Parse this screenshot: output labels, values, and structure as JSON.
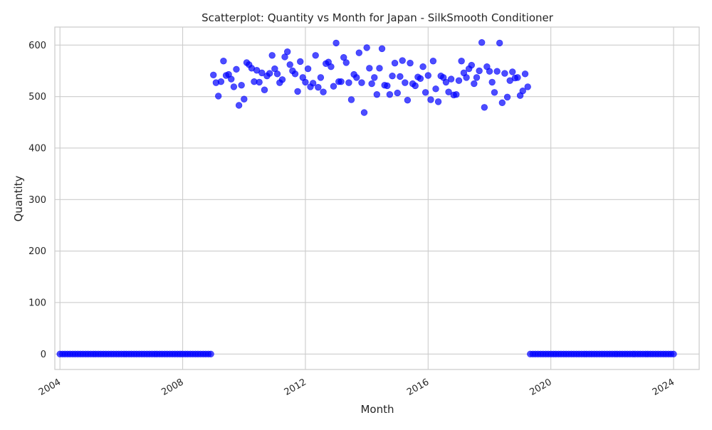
{
  "chart_data": {
    "type": "scatter",
    "title": "Scatterplot: Quantity vs Month for Japan - SilkSmooth Conditioner",
    "xlabel": "Month",
    "ylabel": "Quantity",
    "xlim": [
      "2003-11-01",
      "2024-11-01"
    ],
    "ylim": [
      -30,
      635
    ],
    "x_ticks": [
      {
        "value": "2004-01-01",
        "label": "2004"
      },
      {
        "value": "2008-01-01",
        "label": "2008"
      },
      {
        "value": "2012-01-01",
        "label": "2012"
      },
      {
        "value": "2016-01-01",
        "label": "2016"
      },
      {
        "value": "2020-01-01",
        "label": "2020"
      },
      {
        "value": "2024-01-01",
        "label": "2024"
      }
    ],
    "y_ticks": [
      0,
      100,
      200,
      300,
      400,
      500,
      600
    ],
    "grid": true,
    "marker_color": "#0000ff",
    "marker_opacity": 0.7,
    "background": "#ffffff",
    "grid_color": "#cccccc",
    "series": [
      {
        "start": "2004-01",
        "values": [
          0,
          0,
          0,
          0,
          0,
          0,
          0,
          0,
          0,
          0,
          0,
          0,
          0,
          0,
          0,
          0,
          0,
          0,
          0,
          0,
          0,
          0,
          0,
          0,
          0,
          0,
          0,
          0,
          0,
          0,
          0,
          0,
          0,
          0,
          0,
          0,
          0,
          0,
          0,
          0,
          0,
          0,
          0,
          0,
          0,
          0,
          0,
          0,
          0,
          0,
          0,
          0,
          0,
          0,
          0,
          0,
          0,
          0,
          0,
          0,
          542,
          527,
          501,
          529,
          569,
          541,
          543,
          534,
          519,
          553,
          483,
          522,
          495,
          566,
          562,
          555,
          529,
          551,
          528,
          546,
          513,
          540,
          545,
          580,
          554,
          544,
          527,
          533,
          577,
          587,
          562,
          550,
          544,
          510,
          568,
          537,
          528,
          554,
          519,
          526,
          580,
          518,
          537,
          509,
          564,
          567,
          558,
          520,
          604,
          529,
          529,
          576,
          566,
          527,
          494,
          543,
          537,
          585,
          527,
          469,
          595,
          555,
          525,
          537,
          504,
          555,
          593,
          522,
          521,
          504,
          540,
          565,
          507,
          539,
          570,
          527,
          493,
          565,
          525,
          521,
          538,
          535,
          558,
          508,
          541,
          494,
          569,
          515,
          490,
          540,
          537,
          528,
          509,
          534,
          503,
          504,
          531,
          569,
          546,
          537,
          554,
          561,
          525,
          537,
          550,
          605,
          479,
          558,
          549,
          528,
          508,
          549,
          604,
          488,
          545,
          499,
          531,
          548,
          536,
          537,
          502,
          511,
          544,
          519,
          0,
          0,
          0,
          0,
          0,
          0,
          0,
          0,
          0,
          0,
          0,
          0,
          0,
          0,
          0,
          0,
          0,
          0,
          0,
          0,
          0,
          0,
          0,
          0,
          0,
          0,
          0,
          0,
          0,
          0,
          0,
          0,
          0,
          0,
          0,
          0,
          0,
          0,
          0,
          0,
          0,
          0,
          0,
          0,
          0,
          0,
          0,
          0,
          0,
          0,
          0,
          0,
          0,
          0,
          0,
          0,
          0
        ]
      }
    ]
  }
}
